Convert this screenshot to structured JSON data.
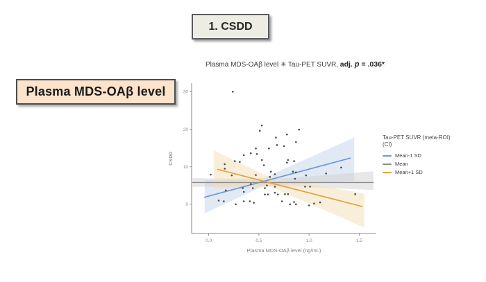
{
  "slide": {
    "step_box_label": "1. CSDD",
    "left_box_label": "Plasma MDS-OAβ level"
  },
  "chart_data": {
    "type": "scatter",
    "title": {
      "full": "Plasma MDS-OAβ level ✳ Tau-PET SUVR, adj. p = .036*",
      "prefix": "Plasma MDS-OAβ level ✳ Tau-PET SUVR, ",
      "bold_pre": "adj. ",
      "bold_p": "p",
      "bold_post": " = .036*"
    },
    "xlabel": "Plasma MDS-OAβ level (ng/mL)",
    "ylabel": "CSDD",
    "xlim": [
      -0.17,
      1.67
    ],
    "ylim": [
      -7.8,
      32.3
    ],
    "xticks": [
      "0.0",
      "0.5",
      "1.0",
      "1.5"
    ],
    "xtick_values": [
      0,
      0.5,
      1.0,
      1.5
    ],
    "yticks": [
      "0",
      "10",
      "20",
      "30"
    ],
    "ytick_values": [
      0,
      10,
      20,
      30
    ],
    "point_color": "#4a4a4a",
    "grid": false,
    "legend_position": "right",
    "points": [
      [
        0.24,
        30
      ],
      [
        0.53,
        21
      ],
      [
        0.51,
        19.6
      ],
      [
        0.9,
        19.9
      ],
      [
        0.78,
        18.6
      ],
      [
        0.67,
        17.8
      ],
      [
        0.87,
        16.6
      ],
      [
        0.68,
        15.8
      ],
      [
        0.75,
        15.5
      ],
      [
        0.47,
        14.9
      ],
      [
        0.6,
        14.9
      ],
      [
        0.42,
        13.6
      ],
      [
        0.48,
        13.4
      ],
      [
        0.35,
        13.1
      ],
      [
        0.53,
        11.8
      ],
      [
        0.79,
        11.8
      ],
      [
        0.85,
        11.5
      ],
      [
        0.78,
        11.1
      ],
      [
        0.26,
        11.5
      ],
      [
        0.31,
        11.3
      ],
      [
        0.16,
        10.7
      ],
      [
        0.55,
        10.4
      ],
      [
        1.32,
        9.8
      ],
      [
        0.16,
        9.5
      ],
      [
        0.62,
        8.7
      ],
      [
        0.84,
        8.7
      ],
      [
        0.87,
        8.5
      ],
      [
        1.17,
        8.2
      ],
      [
        0.02,
        7.9
      ],
      [
        0.23,
        7.7
      ],
      [
        0.47,
        7.8
      ],
      [
        0.66,
        8.0
      ],
      [
        0.97,
        7.7
      ],
      [
        0.61,
        7.3
      ],
      [
        0.86,
        6.8
      ],
      [
        0.42,
        5.4
      ],
      [
        0.58,
        5.0
      ],
      [
        0.66,
        4.7
      ],
      [
        0.96,
        4.7
      ],
      [
        1.01,
        4.7
      ],
      [
        0.44,
        4.3
      ],
      [
        0.34,
        4.3
      ],
      [
        0.56,
        4.3
      ],
      [
        0.17,
        3.7
      ],
      [
        0.35,
        3.3
      ],
      [
        0.66,
        3.1
      ],
      [
        1.46,
        2.7
      ],
      [
        0.76,
        2.7
      ],
      [
        0.79,
        2.7
      ],
      [
        0.69,
        2.6
      ],
      [
        0.59,
        2.6
      ],
      [
        0.56,
        2.6
      ],
      [
        0.1,
        1.0
      ],
      [
        0.15,
        0.8
      ],
      [
        0.35,
        0.8
      ],
      [
        0.41,
        0.8
      ],
      [
        0.73,
        0.8
      ],
      [
        0.85,
        0.6
      ],
      [
        1.11,
        0.5
      ],
      [
        0.45,
        0.4
      ],
      [
        1.05,
        0.2
      ],
      [
        0.27,
        0.0
      ],
      [
        0.81,
        0.0
      ],
      [
        0.87,
        0.0
      ],
      [
        1.0,
        -0.3
      ]
    ],
    "series": [
      {
        "name": "Mean-1 SD",
        "color": "#6e96d5",
        "band_color": "#c3d4ec",
        "line": [
          [
            -0.04,
            1.9
          ],
          [
            1.41,
            12.3
          ]
        ],
        "band": [
          [
            -0.04,
            6.4
          ],
          [
            0.55,
            7.0
          ],
          [
            1.45,
            17.8
          ],
          [
            1.45,
            6.2
          ],
          [
            0.55,
            4.9
          ],
          [
            -0.04,
            -2.4
          ]
        ]
      },
      {
        "name": "Mean",
        "color": "#8c8c8c",
        "band_color": "#d2d2d2",
        "line": [
          [
            -0.16,
            5.8
          ],
          [
            1.64,
            5.8
          ]
        ],
        "band": [
          [
            -0.16,
            7.0
          ],
          [
            0.6,
            6.6
          ],
          [
            1.64,
            8.8
          ],
          [
            1.64,
            3.8
          ],
          [
            0.6,
            5.0
          ],
          [
            -0.16,
            4.6
          ]
        ]
      },
      {
        "name": "Mean+1 SD",
        "color": "#e2a33c",
        "band_color": "#f4ddb4",
        "line": [
          [
            0.09,
            9.3
          ],
          [
            1.53,
            -0.6
          ]
        ],
        "band": [
          [
            0.05,
            14.4
          ],
          [
            0.62,
            7.0
          ],
          [
            1.55,
            2.9
          ],
          [
            1.55,
            -6.2
          ],
          [
            0.62,
            4.6
          ],
          [
            0.05,
            4.1
          ]
        ]
      }
    ],
    "legend": {
      "title": "Tau-PET SUVR (meta-ROI)",
      "subtitle": "(CI)"
    }
  }
}
